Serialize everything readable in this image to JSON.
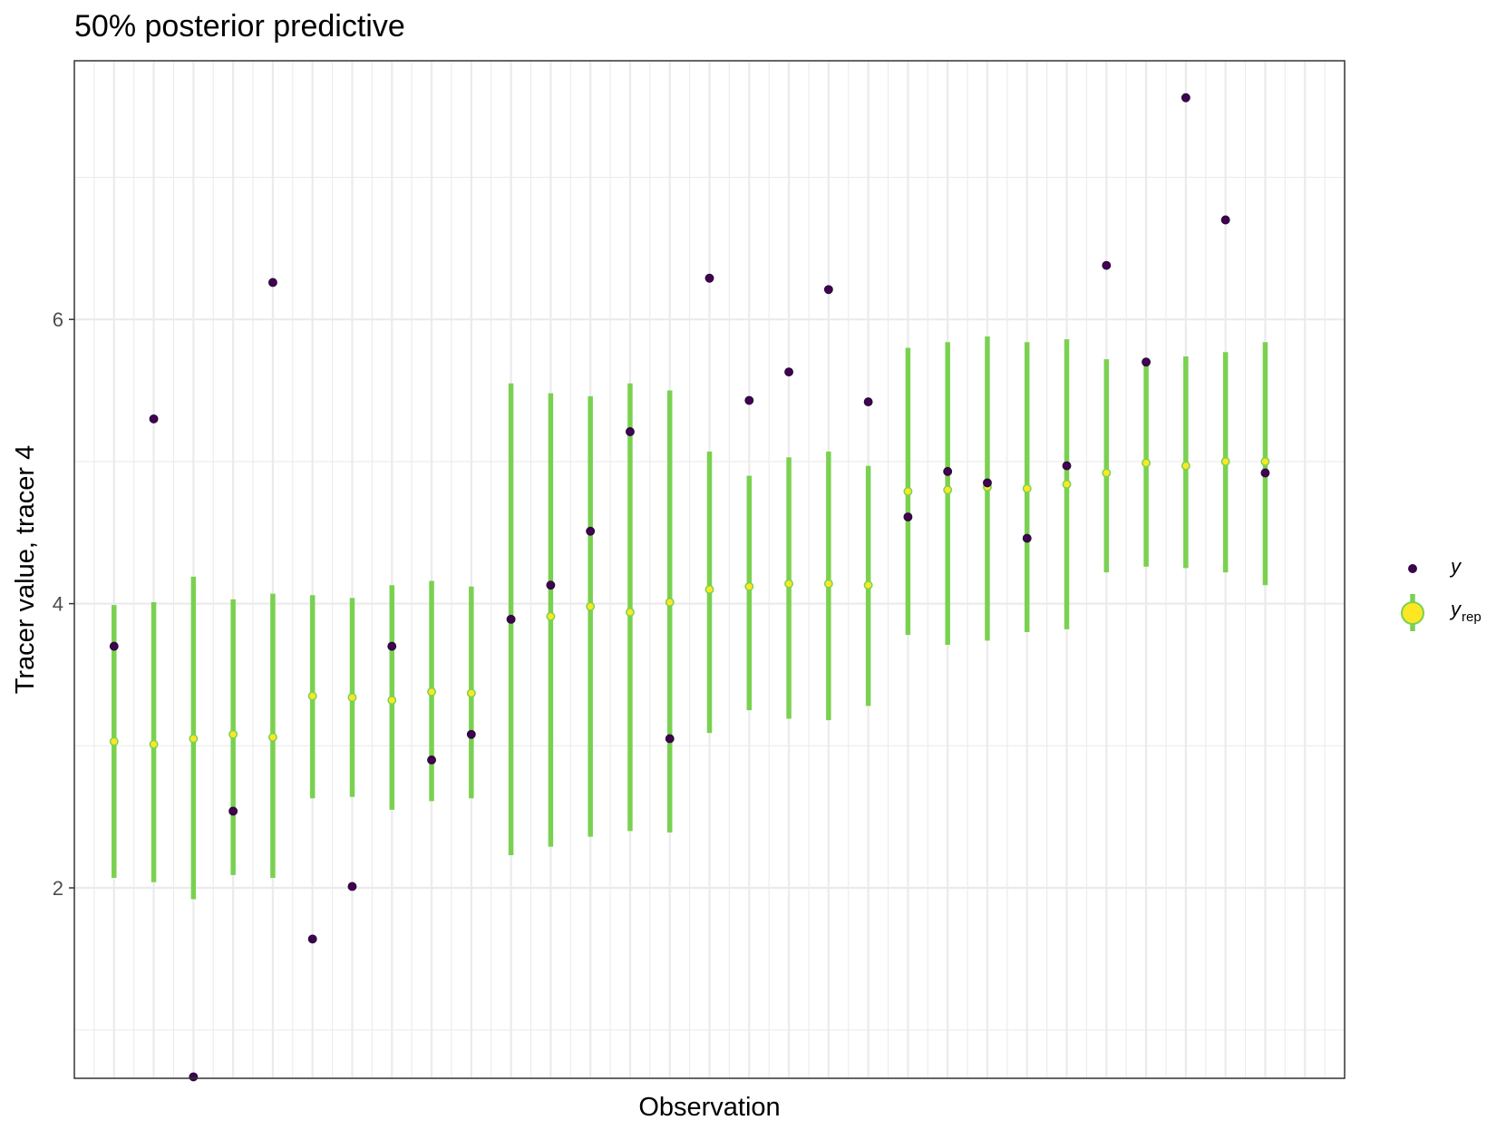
{
  "chart_data": {
    "type": "scatter",
    "title": "50% posterior predictive",
    "xlabel": "Observation",
    "ylabel": "Tracer value, tracer 4",
    "ylim": [
      0.66,
      7.82
    ],
    "yticks": [
      2,
      4,
      6
    ],
    "xlim": [
      0,
      32
    ],
    "x_tick_labels_shown": false,
    "grid": true,
    "legend_position": "right",
    "legend": [
      {
        "key": "y",
        "label": "y",
        "sub": ""
      },
      {
        "key": "yrep",
        "label": "y",
        "sub": "rep"
      }
    ],
    "colors": {
      "y_fill": "#440154",
      "y_edge": "#2d0a3e",
      "yrep_fill": "#fde725",
      "yrep_edge": "#7ad151",
      "interval": "#7ad151",
      "grid": "#ebebeb",
      "panel_border": "#333333"
    },
    "x": [
      1,
      2,
      3,
      4,
      5,
      6,
      7,
      8,
      9,
      10,
      11,
      12,
      13,
      14,
      15,
      16,
      17,
      18,
      19,
      20,
      21,
      22,
      23,
      24,
      25,
      26,
      27,
      28,
      29,
      30
    ],
    "y": [
      3.7,
      5.3,
      0.67,
      2.54,
      6.26,
      1.64,
      2.01,
      3.7,
      2.9,
      3.08,
      3.89,
      4.13,
      4.51,
      5.21,
      3.05,
      6.29,
      5.43,
      5.63,
      6.21,
      5.42,
      4.61,
      4.93,
      4.85,
      4.46,
      4.97,
      6.38,
      5.7,
      7.56,
      6.7,
      4.92
    ],
    "yrep_median": [
      3.03,
      3.01,
      3.05,
      3.08,
      3.06,
      3.35,
      3.34,
      3.32,
      3.38,
      3.37,
      3.89,
      3.91,
      3.98,
      3.94,
      4.01,
      4.1,
      4.12,
      4.14,
      4.14,
      4.13,
      4.79,
      4.8,
      4.82,
      4.81,
      4.84,
      4.92,
      4.99,
      4.97,
      5.0,
      5.0
    ],
    "yrep_low": [
      2.07,
      2.04,
      1.92,
      2.09,
      2.07,
      2.63,
      2.64,
      2.55,
      2.61,
      2.63,
      2.23,
      2.29,
      2.36,
      2.4,
      2.39,
      3.09,
      3.25,
      3.19,
      3.18,
      3.28,
      3.78,
      3.71,
      3.74,
      3.8,
      3.82,
      4.22,
      4.26,
      4.25,
      4.22,
      4.13
    ],
    "yrep_high": [
      3.99,
      4.01,
      4.19,
      4.03,
      4.07,
      4.06,
      4.04,
      4.13,
      4.16,
      4.12,
      5.55,
      5.48,
      5.46,
      5.55,
      5.5,
      5.07,
      4.9,
      5.03,
      5.07,
      4.97,
      5.8,
      5.84,
      5.88,
      5.84,
      5.86,
      5.72,
      5.7,
      5.74,
      5.77,
      5.84
    ]
  }
}
